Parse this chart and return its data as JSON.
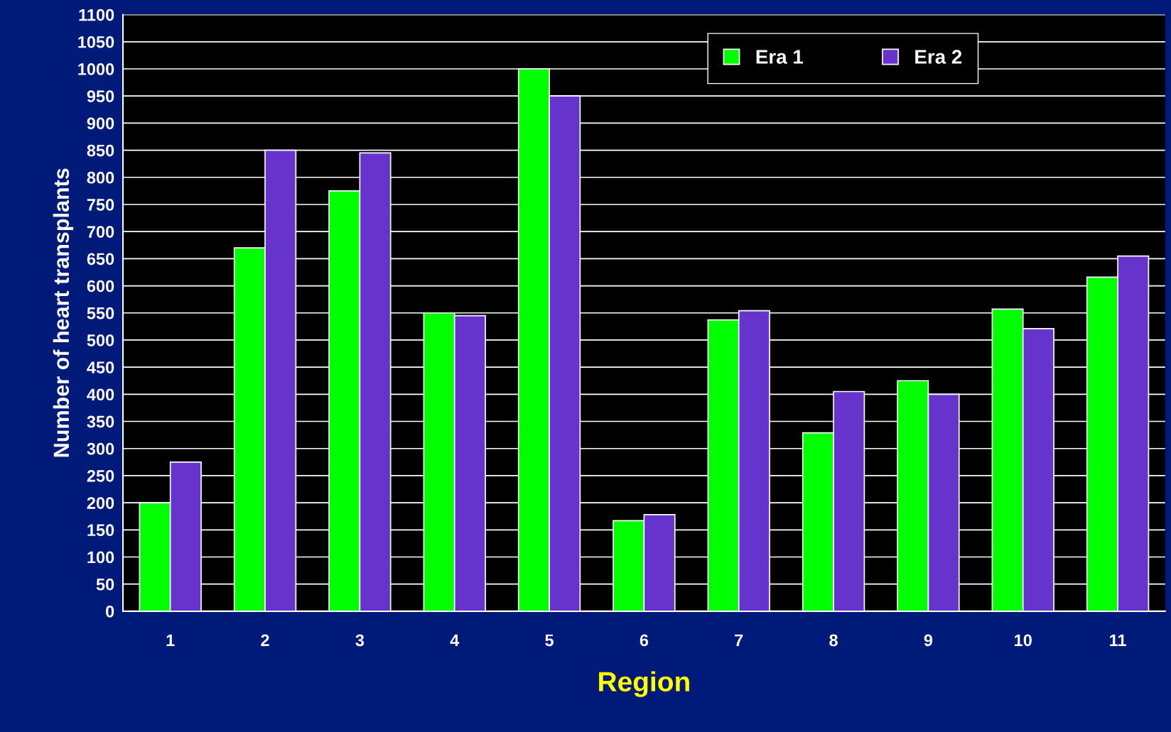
{
  "chart_data": {
    "type": "bar",
    "xlabel": "Region",
    "ylabel": "Number of heart transplants",
    "categories": [
      "1",
      "2",
      "3",
      "4",
      "5",
      "6",
      "7",
      "8",
      "9",
      "10",
      "11"
    ],
    "series": [
      {
        "name": "Era 1",
        "color": "#00ff00",
        "values": [
          200,
          670,
          775,
          550,
          1000,
          167,
          537,
          329,
          425,
          557,
          616
        ]
      },
      {
        "name": "Era 2",
        "color": "#6633cc",
        "values": [
          275,
          850,
          845,
          545,
          950,
          178,
          554,
          405,
          400,
          521,
          655
        ]
      }
    ],
    "ylim": [
      0,
      1100
    ],
    "yticks": [
      0,
      50,
      100,
      150,
      200,
      250,
      300,
      350,
      400,
      450,
      500,
      550,
      600,
      650,
      700,
      750,
      800,
      850,
      900,
      950,
      1000,
      1050,
      1100
    ],
    "grid": "y",
    "legend": "top right"
  }
}
